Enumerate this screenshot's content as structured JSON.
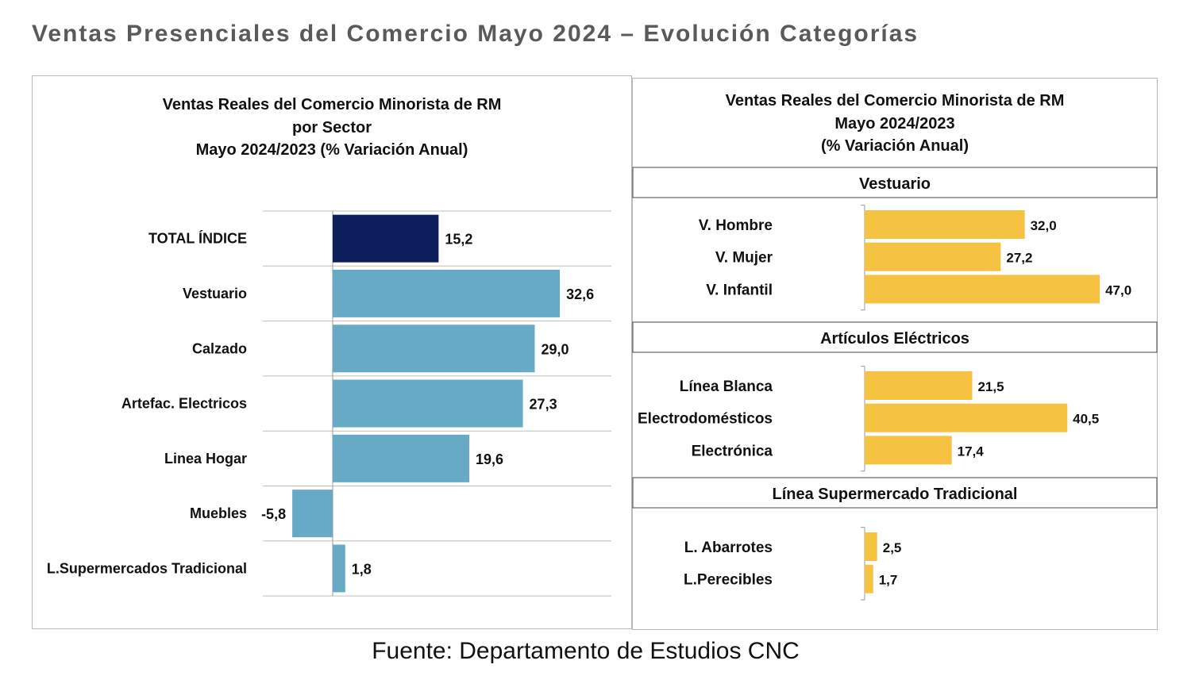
{
  "page_title": "Ventas Presenciales del Comercio Mayo 2024 – Evolución Categorías",
  "footer": "Fuente: Departamento de Estudios CNC",
  "colors": {
    "total_bar": "#0c1f5c",
    "sector_bar": "#66aac6",
    "category_bar": "#f5c242",
    "grid": "#bdbdbd",
    "title_gray": "#5a5a5a"
  },
  "chart_data": [
    {
      "type": "bar",
      "orientation": "horizontal",
      "title_lines": [
        "Ventas Reales del Comercio Minorista de RM",
        "por Sector",
        "Mayo 2024/2023 (% Variación Anual)"
      ],
      "categories": [
        "TOTAL ÍNDICE",
        "Vestuario",
        "Calzado",
        "Artefac. Electricos",
        "Linea Hogar",
        "Muebles",
        "L.Supermercados Tradicional"
      ],
      "values": [
        15.2,
        32.6,
        29.0,
        27.3,
        19.6,
        -5.8,
        1.8
      ],
      "data_labels": [
        "15,2",
        "32,6",
        "29,0",
        "27,3",
        "19,6",
        "-5,8",
        "1,8"
      ]
    },
    {
      "type": "bar",
      "orientation": "horizontal",
      "title_lines": [
        "Ventas Reales del Comercio Minorista de RM",
        "Mayo 2024/2023",
        "(% Variación Anual)"
      ],
      "groups": [
        {
          "name": "Vestuario",
          "categories": [
            "V. Hombre",
            "V. Mujer",
            "V. Infantil"
          ],
          "values": [
            32.0,
            27.2,
            47.0
          ],
          "data_labels": [
            "32,0",
            "27,2",
            "47,0"
          ]
        },
        {
          "name": "Artículos Eléctricos",
          "categories": [
            "Línea Blanca",
            "Electrodomésticos",
            "Electrónica"
          ],
          "values": [
            21.5,
            40.5,
            17.4
          ],
          "data_labels": [
            "21,5",
            "40,5",
            "17,4"
          ]
        },
        {
          "name": "Línea Supermercado Tradicional",
          "categories": [
            "L. Abarrotes",
            "L.Perecibles"
          ],
          "values": [
            2.5,
            1.7
          ],
          "data_labels": [
            "2,5",
            "1,7"
          ]
        }
      ]
    }
  ]
}
